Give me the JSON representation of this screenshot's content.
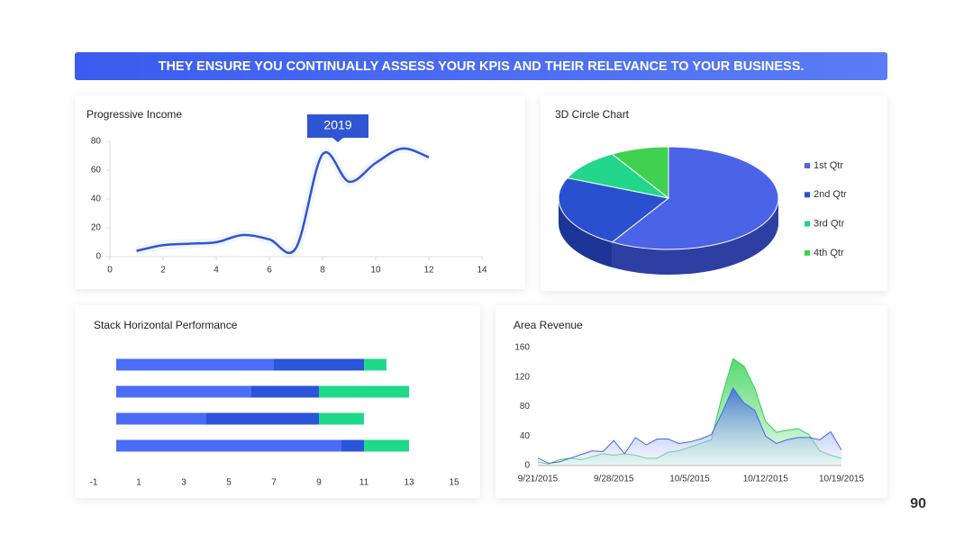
{
  "banner": "THEY ENSURE YOU CONTINUALLY ASSESS YOUR KPIS AND THEIR RELEVANCE TO YOUR BUSINESS.",
  "page_number": "90",
  "chart_data": [
    {
      "type": "line",
      "title": "Progressive Income",
      "x": [
        1,
        2,
        3,
        4,
        5,
        6,
        7,
        8,
        9,
        10,
        11,
        12
      ],
      "values": [
        4,
        8,
        9,
        10,
        15,
        12,
        6,
        71,
        52,
        65,
        75,
        69
      ],
      "color": "#2f55d4",
      "xlim": [
        0,
        14
      ],
      "xticks": [
        0,
        2,
        4,
        6,
        8,
        10,
        12,
        14
      ],
      "ylim": [
        0,
        80
      ],
      "yticks": [
        0,
        20,
        40,
        60,
        80
      ],
      "annotation": {
        "label": "2019",
        "x": 8
      }
    },
    {
      "type": "pie",
      "title": "3D Circle Chart",
      "categories": [
        "1st Qtr",
        "2nd Qtr",
        "3rd Qtr",
        "4th Qtr"
      ],
      "values": [
        8.2,
        3.2,
        1.4,
        1.2
      ],
      "colors": [
        "#4a63e7",
        "#2a50d0",
        "#22d68a",
        "#3fd14f"
      ],
      "legend": "right"
    },
    {
      "type": "bar",
      "orientation": "horizontal",
      "stacked": true,
      "title": "Stack Horizontal Performance",
      "categories": [
        null,
        null,
        null,
        null
      ],
      "series": [
        {
          "color": "#4a6cf7",
          "values": [
            7,
            6,
            4,
            10
          ]
        },
        {
          "color": "#2b55d9",
          "values": [
            4,
            3,
            5,
            1
          ]
        },
        {
          "color": "#1fd98a",
          "values": [
            1,
            4,
            2,
            2
          ]
        }
      ],
      "xlim": [
        -1,
        15
      ],
      "xticks": [
        -1,
        1,
        3,
        5,
        7,
        9,
        11,
        13,
        15
      ]
    },
    {
      "type": "area",
      "title": "Area Revenue",
      "x": [
        "9/21/2015",
        "9/22/2015",
        "9/23/2015",
        "9/24/2015",
        "9/25/2015",
        "9/26/2015",
        "9/27/2015",
        "9/28/2015",
        "9/29/2015",
        "9/30/2015",
        "10/1/2015",
        "10/2/2015",
        "10/3/2015",
        "10/4/2015",
        "10/5/2015",
        "10/6/2015",
        "10/7/2015",
        "10/8/2015",
        "10/9/2015",
        "10/10/2015",
        "10/11/2015",
        "10/12/2015",
        "10/13/2015",
        "10/14/2015",
        "10/15/2015",
        "10/16/2015",
        "10/17/2015",
        "10/18/2015",
        "10/19/2015"
      ],
      "xticks": [
        "9/21/2015",
        "9/28/2015",
        "10/5/2015",
        "10/12/2015",
        "10/19/2015"
      ],
      "series": [
        {
          "color": "#2fd14f",
          "values": [
            5,
            2,
            8,
            10,
            8,
            12,
            16,
            14,
            16,
            14,
            10,
            10,
            18,
            20,
            25,
            30,
            35,
            95,
            145,
            135,
            105,
            60,
            45,
            48,
            50,
            42,
            20,
            14,
            10
          ]
        },
        {
          "color": "#4a63e7",
          "values": [
            10,
            3,
            5,
            10,
            15,
            20,
            19,
            34,
            16,
            38,
            28,
            36,
            36,
            30,
            32,
            36,
            42,
            72,
            105,
            85,
            75,
            40,
            30,
            35,
            38,
            38,
            35,
            46,
            21
          ]
        }
      ],
      "ylim": [
        0,
        160
      ],
      "yticks": [
        0,
        40,
        80,
        120,
        160
      ]
    }
  ]
}
